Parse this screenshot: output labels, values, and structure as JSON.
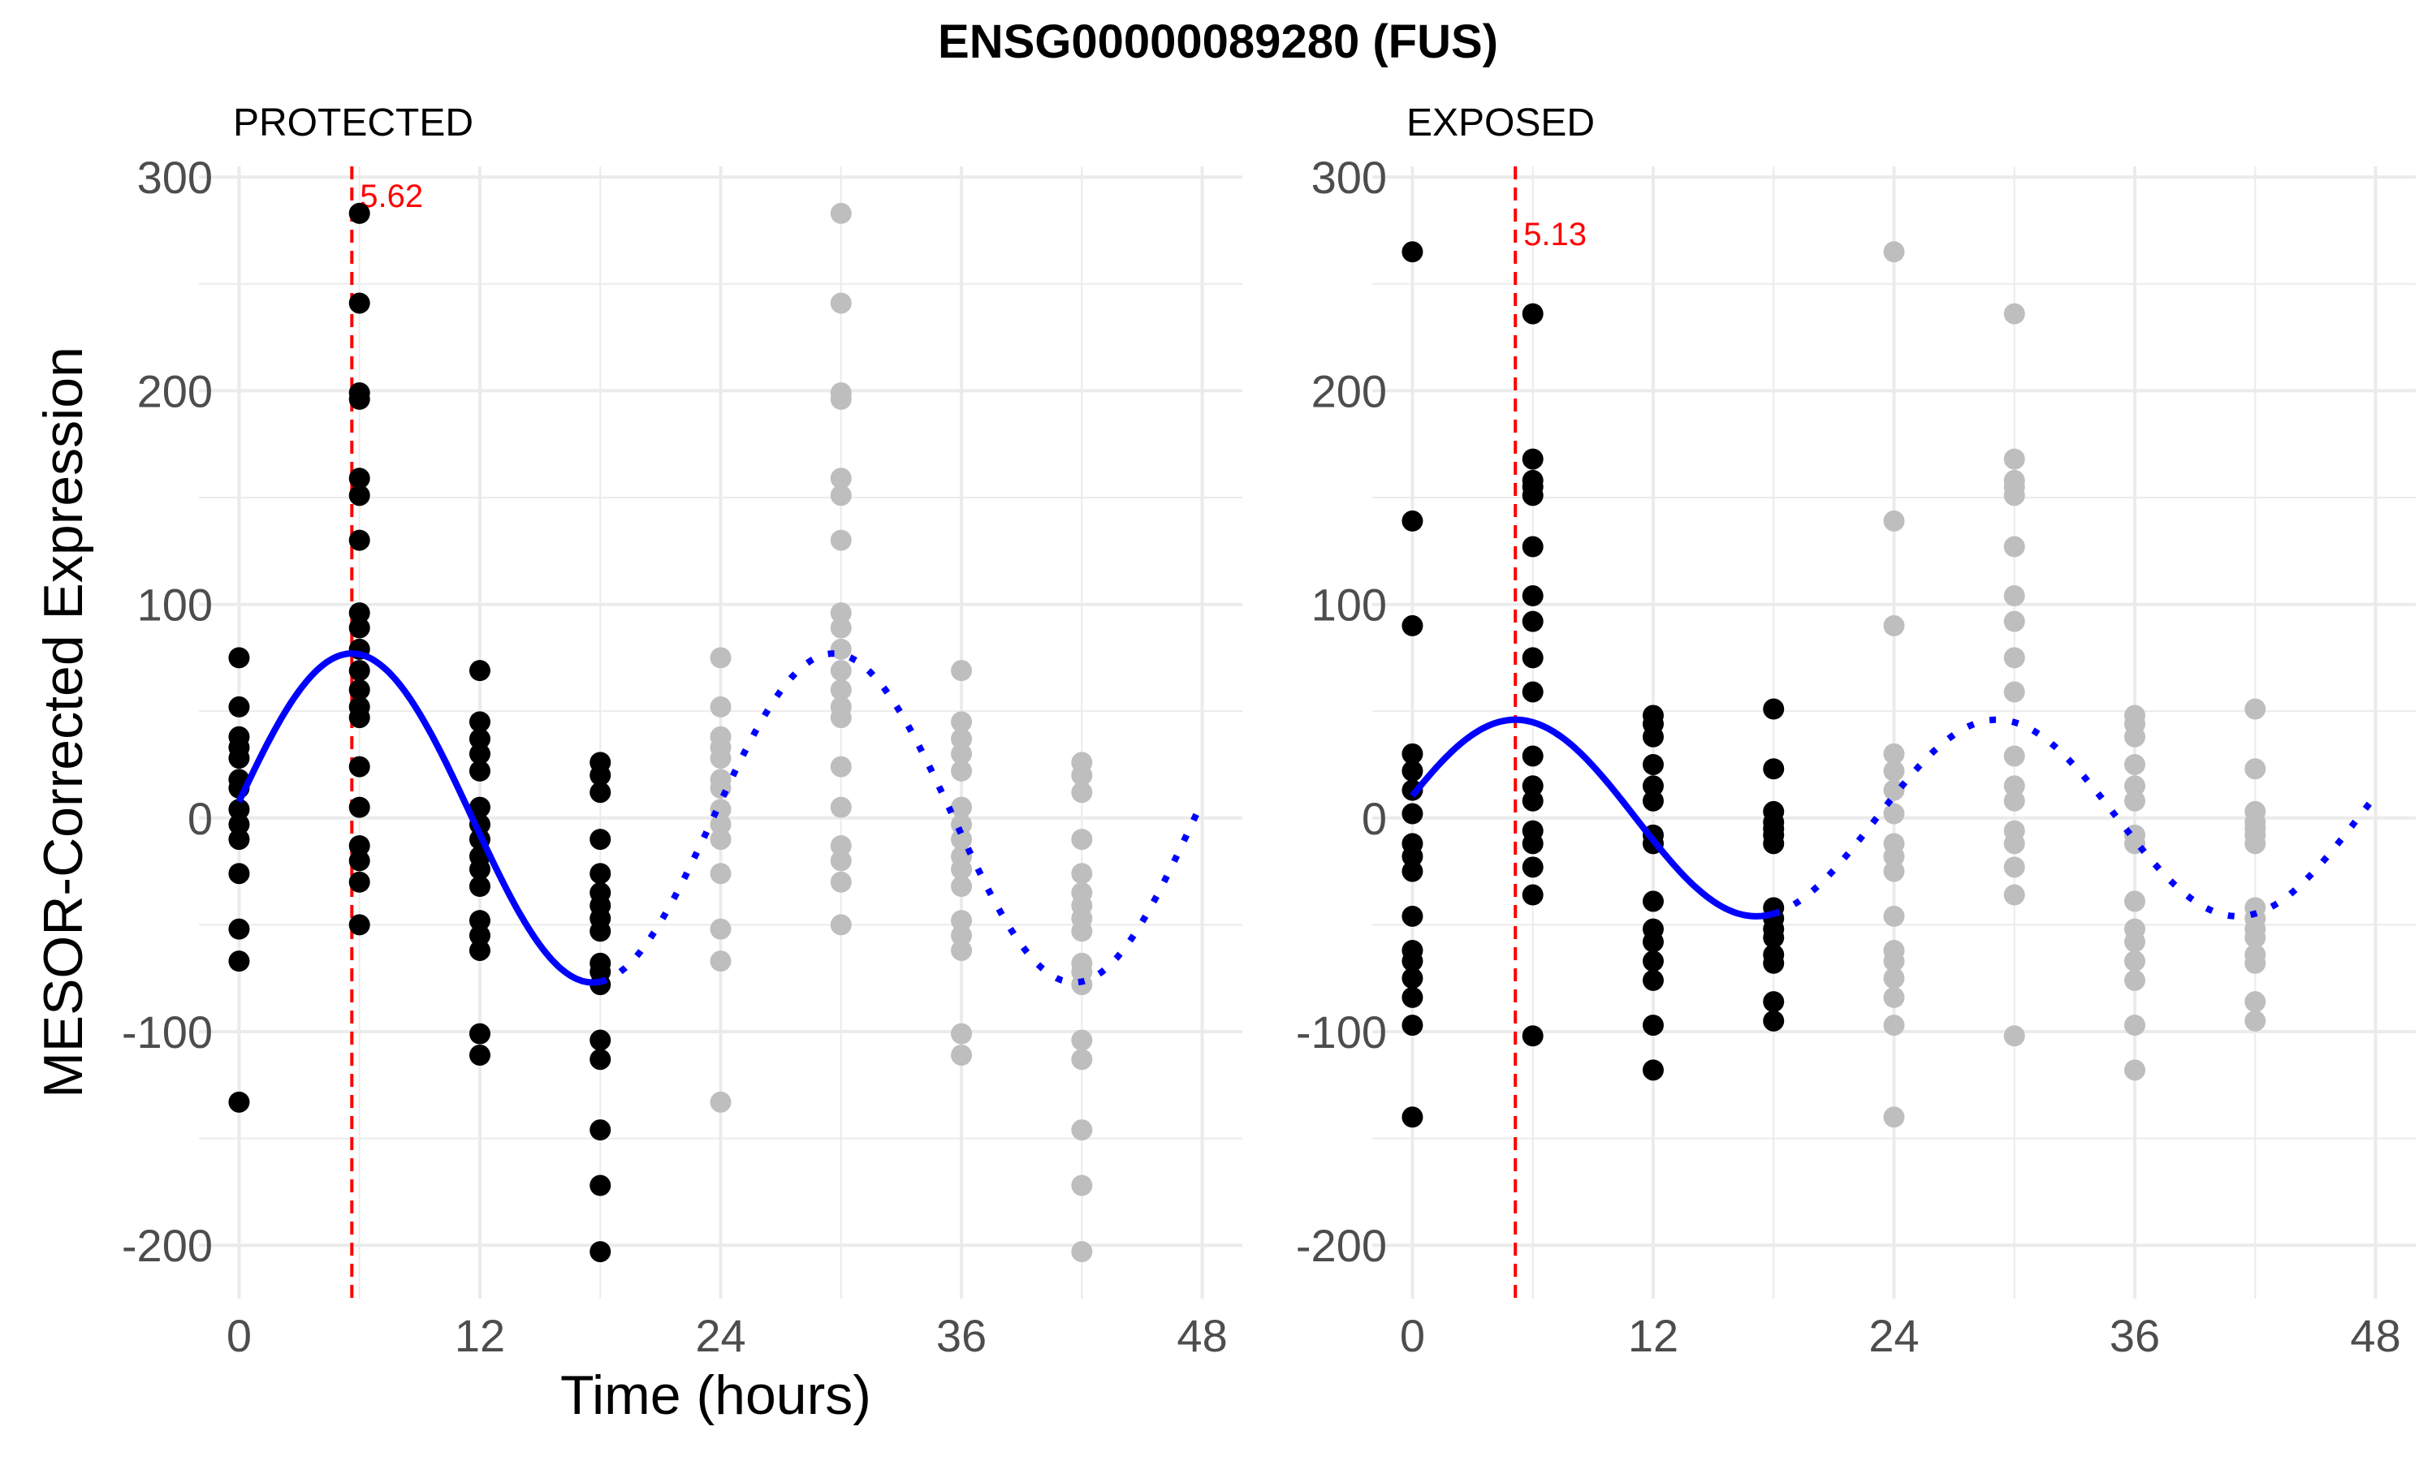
{
  "chart_data": {
    "type": "scatter",
    "title": "ENSG00000089280 (FUS)",
    "xlabel": "Time (hours)",
    "ylabel": "MESOR-Corrected Expression",
    "x_ticks": [
      0,
      12,
      24,
      36,
      48
    ],
    "y_ticks": [
      300,
      200,
      100,
      0,
      -100,
      -200
    ],
    "ylim": [
      -225,
      305
    ],
    "grid": true,
    "colors": {
      "observed_points": "#000000",
      "replicated_points": "#bebebe",
      "fit_line": "#0000ff",
      "acrophase_line": "#ff0000",
      "grid": "#ebebeb"
    },
    "panels": [
      {
        "label": "PROTECTED",
        "xlim": [
          -2,
          50
        ],
        "acrophase": 5.62,
        "acrophase_label": "5.62",
        "fit": {
          "mesor": 0,
          "amplitude": 77,
          "period": 24,
          "acrophase": 5.62,
          "solid_range": [
            0,
            18
          ],
          "dotted_range": [
            18,
            48
          ]
        },
        "replicate_offset": 24,
        "observed": [
          {
            "time": 0,
            "values": [
              75,
              52,
              38,
              33,
              28,
              18,
              14,
              4,
              -3,
              -10,
              -26,
              -52,
              -67,
              -133
            ]
          },
          {
            "time": 6,
            "values": [
              283,
              241,
              199,
              196,
              159,
              151,
              130,
              96,
              89,
              79,
              69,
              60,
              52,
              47,
              24,
              5,
              -13,
              -20,
              -30,
              -50
            ]
          },
          {
            "time": 12,
            "values": [
              69,
              45,
              37,
              30,
              22,
              5,
              -3,
              -10,
              -18,
              -24,
              -32,
              -48,
              -55,
              -62,
              -101,
              -111
            ]
          },
          {
            "time": 18,
            "values": [
              26,
              20,
              12,
              -10,
              -26,
              -35,
              -41,
              -47,
              -53,
              -68,
              -72,
              -78,
              -104,
              -113,
              -146,
              -172,
              -203
            ]
          }
        ]
      },
      {
        "label": "EXPOSED",
        "xlim": [
          -2,
          50
        ],
        "acrophase": 5.13,
        "acrophase_label": "5.13",
        "fit": {
          "mesor": 0,
          "amplitude": 46,
          "period": 24,
          "acrophase": 5.13,
          "solid_range": [
            0,
            18
          ],
          "dotted_range": [
            18,
            48
          ]
        },
        "replicate_offset": 24,
        "observed": [
          {
            "time": 0,
            "values": [
              265,
              139,
              90,
              30,
              22,
              13,
              2,
              -12,
              -18,
              -25,
              -46,
              -62,
              -67,
              -75,
              -84,
              -97,
              -140
            ]
          },
          {
            "time": 6,
            "values": [
              236,
              168,
              158,
              155,
              151,
              127,
              104,
              92,
              75,
              59,
              29,
              15,
              8,
              -6,
              -12,
              -23,
              -36,
              -102
            ]
          },
          {
            "time": 12,
            "values": [
              48,
              44,
              38,
              25,
              15,
              8,
              -8,
              -12,
              -39,
              -52,
              -58,
              -67,
              -76,
              -97,
              -118
            ]
          },
          {
            "time": 18,
            "values": [
              51,
              23,
              3,
              -2,
              -5,
              -8,
              -12,
              -42,
              -47,
              -52,
              -56,
              -64,
              -68,
              -86,
              -95
            ]
          }
        ]
      }
    ]
  }
}
